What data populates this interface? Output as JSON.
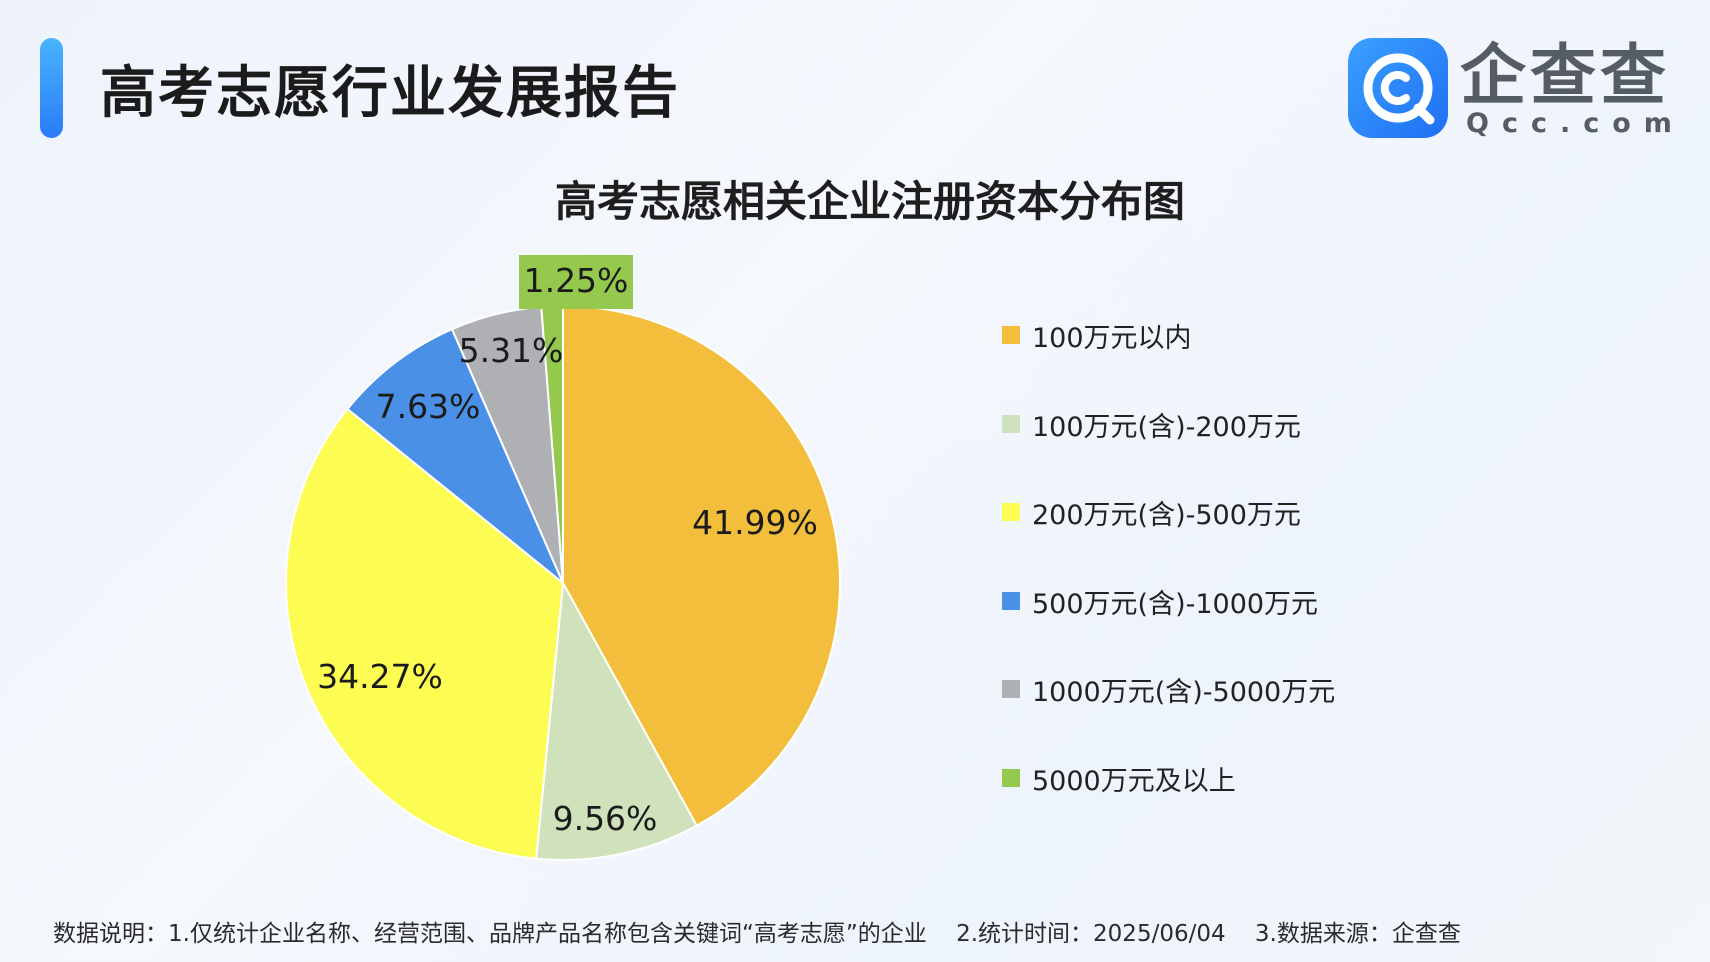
{
  "header": {
    "title": "高考志愿行业发展报告"
  },
  "logo": {
    "name": "企查查",
    "domain": "Qcc.com",
    "icon": "qcc-logo-icon",
    "color": "#2a86f5"
  },
  "chart_data": {
    "type": "pie",
    "title": "高考志愿相关企业注册资本分布图",
    "legend_position": "right",
    "slices": [
      {
        "label": "100万元以内",
        "value": 41.99,
        "display": "41.99%",
        "color": "#F2BE3C"
      },
      {
        "label": "100万元(含)-200万元",
        "value": 9.56,
        "display": "9.56%",
        "color": "#CFE2BB"
      },
      {
        "label": "200万元(含)-500万元",
        "value": 34.27,
        "display": "34.27%",
        "color": "#FCFC53"
      },
      {
        "label": "500万元(含)-1000万元",
        "value": 7.63,
        "display": "7.63%",
        "color": "#4A90E6"
      },
      {
        "label": "1000万元(含)-5000万元",
        "value": 5.31,
        "display": "5.31%",
        "color": "#AEB0B4"
      },
      {
        "label": "5000万元及以上",
        "value": 1.25,
        "display": "1.25%",
        "color": "#94C94E"
      }
    ]
  },
  "footer": {
    "note1": "数据说明：1.仅统计企业名称、经营范围、品牌产品名称包含关键词“高考志愿”的企业",
    "note2": "2.统计时间：2025/06/04",
    "note3": "3.数据来源：企查查"
  }
}
